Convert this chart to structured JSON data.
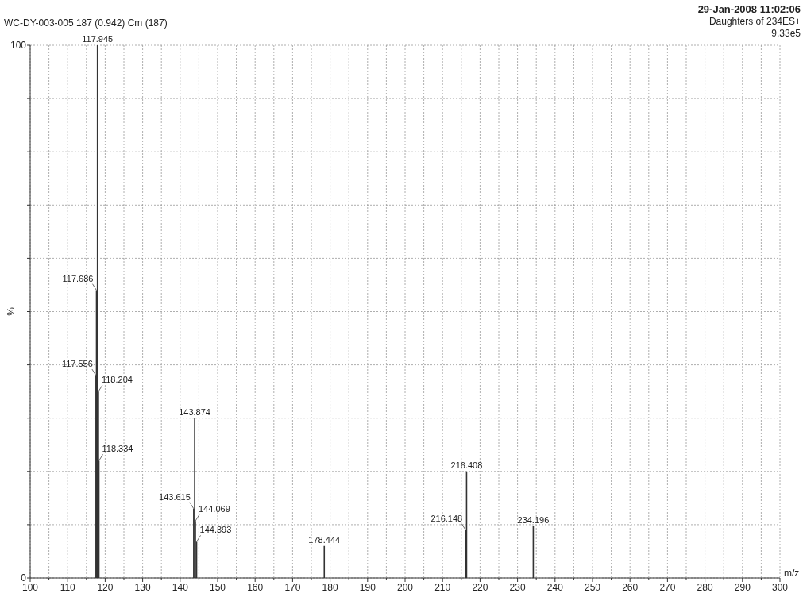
{
  "chart_data": {
    "type": "bar",
    "title": "WC-DY-003-005 187 (0.942) Cm (187)",
    "xlabel": "m/z",
    "ylabel": "%",
    "annotations": [
      "29-Jan-2008  11:02:06",
      "Daughters of 234ES+",
      "9.33e5",
      {
        "text": "117.556",
        "x": 117.556,
        "y": 38
      },
      {
        "text": "117.686",
        "x": 117.686,
        "y": 54
      },
      {
        "text": "117.945",
        "x": 117.945,
        "y": 100
      },
      {
        "text": "118.204",
        "x": 118.204,
        "y": 35
      },
      {
        "text": "118.334",
        "x": 118.334,
        "y": 22
      },
      {
        "text": "143.615",
        "x": 143.615,
        "y": 13
      },
      {
        "text": "143.874",
        "x": 143.874,
        "y": 30
      },
      {
        "text": "144.069",
        "x": 144.069,
        "y": 10.7
      },
      {
        "text": "144.393",
        "x": 144.393,
        "y": 6.8
      },
      {
        "text": "178.444",
        "x": 178.444,
        "y": 6
      },
      {
        "text": "216.148",
        "x": 216.148,
        "y": 9
      },
      {
        "text": "216.408",
        "x": 216.408,
        "y": 20
      },
      {
        "text": "234.196",
        "x": 234.196,
        "y": 9.7
      }
    ],
    "x": [
      117.556,
      117.686,
      117.945,
      118.204,
      118.334,
      143.615,
      143.874,
      144.069,
      144.393,
      178.444,
      216.148,
      216.408,
      234.196
    ],
    "values": [
      38,
      54,
      100,
      35,
      22,
      13,
      30,
      10.7,
      6.8,
      6,
      9,
      20,
      9.7
    ],
    "color": "#333333",
    "xlim": [
      100,
      300
    ],
    "xticks": [
      100,
      {
        "value": 105,
        "label": null
      },
      110,
      {
        "value": 115,
        "label": null
      },
      120,
      {
        "value": 125,
        "label": null
      },
      130,
      {
        "value": 135,
        "label": null
      },
      140,
      {
        "value": 145,
        "label": null
      },
      150,
      {
        "value": 155,
        "label": null
      },
      160,
      {
        "value": 165,
        "label": null
      },
      170,
      {
        "value": 175,
        "label": null
      },
      180,
      {
        "value": 185,
        "label": null
      },
      190,
      {
        "value": 195,
        "label": null
      },
      200,
      {
        "value": 205,
        "label": null
      },
      210,
      {
        "value": 215,
        "label": null
      },
      220,
      {
        "value": 225,
        "label": null
      },
      230,
      {
        "value": 235,
        "label": null
      },
      240,
      {
        "value": 245,
        "label": null
      },
      250,
      {
        "value": 255,
        "label": null
      },
      260,
      {
        "value": 265,
        "label": null
      },
      270,
      {
        "value": 275,
        "label": null
      },
      280,
      {
        "value": 285,
        "label": null
      },
      290,
      {
        "value": 295,
        "label": null
      },
      300
    ],
    "ylim": [
      0,
      100
    ],
    "yticks": [
      0,
      {
        "value": 10,
        "label": null
      },
      {
        "value": 20,
        "label": null
      },
      {
        "value": 30,
        "label": null
      },
      {
        "value": 40,
        "label": null
      },
      {
        "value": 50,
        "label": null
      },
      {
        "value": 60,
        "label": null
      },
      {
        "value": 70,
        "label": null
      },
      {
        "value": 80,
        "label": null
      },
      {
        "value": 90,
        "label": null
      },
      100
    ],
    "grid": true
  }
}
